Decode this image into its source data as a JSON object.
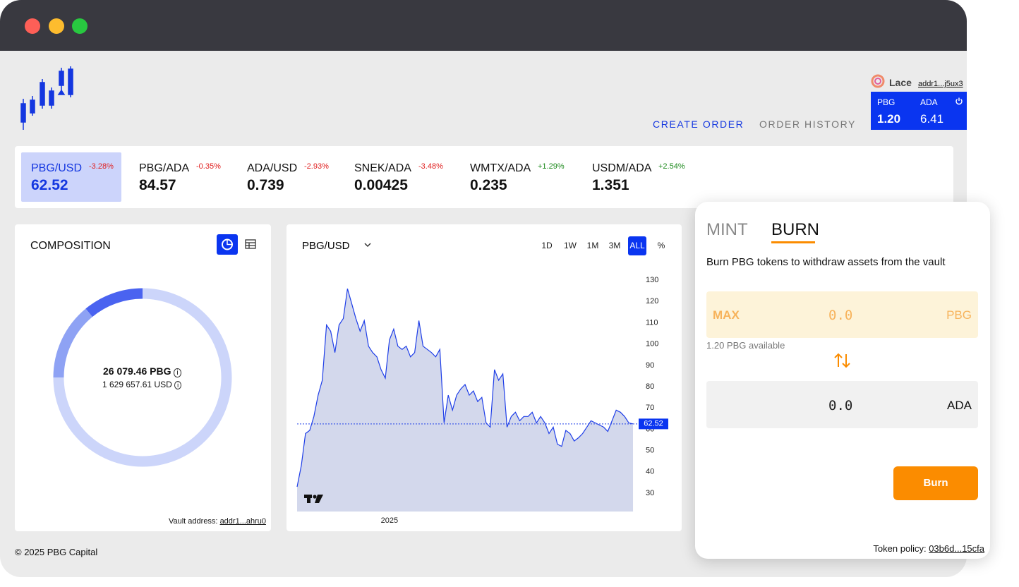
{
  "header": {
    "wallet": {
      "name": "Lace",
      "address": "addr1...j5ux3",
      "balances": [
        {
          "asset": "PBG",
          "amount": "1.20"
        },
        {
          "asset": "ADA",
          "amount": "6.41"
        }
      ]
    },
    "nav": [
      "CREATE ORDER",
      "ORDER HISTORY"
    ]
  },
  "tickers": [
    {
      "pair": "PBG/USD",
      "change": "-3.28%",
      "price": "62.52"
    },
    {
      "pair": "PBG/ADA",
      "change": "-0.35%",
      "price": "84.57"
    },
    {
      "pair": "ADA/USD",
      "change": "-2.93%",
      "price": "0.739"
    },
    {
      "pair": "SNEK/ADA",
      "change": "-3.48%",
      "price": "0.00425"
    },
    {
      "pair": "WMTX/ADA",
      "change": "+1.29%",
      "price": "0.235"
    },
    {
      "pair": "USDM/ADA",
      "change": "+2.54%",
      "price": "1.351"
    }
  ],
  "composition": {
    "title": "COMPOSITION",
    "total_pbg": "26 079.46 PBG",
    "total_usd": "1 629 657.61 USD",
    "segments": [
      {
        "color": "#4a63f0",
        "value": 11
      },
      {
        "color": "#8ea2f4",
        "value": 14
      },
      {
        "color": "#ccd5fa",
        "value": 75
      }
    ],
    "vault_label": "Vault address:",
    "vault_address": "addr1...ahru0"
  },
  "chart_data": {
    "type": "line",
    "title": "PBG/USD",
    "timeframes": [
      "1D",
      "1W",
      "1M",
      "3M",
      "ALL",
      "%"
    ],
    "active_timeframe": "ALL",
    "series": [
      {
        "name": "PBG/USD",
        "color": "#1e3ee8",
        "fill": "#d3d8ec",
        "values": [
          33,
          43,
          58,
          59.5,
          66,
          76,
          83,
          109,
          106,
          96,
          109,
          112,
          126,
          119,
          112,
          106,
          111,
          99,
          96,
          94,
          88,
          84,
          102,
          107,
          99,
          97.5,
          99,
          94,
          96,
          111,
          99,
          97.5,
          96,
          94,
          97.5,
          63,
          76,
          69,
          76,
          79,
          81,
          76,
          78,
          73,
          75,
          63,
          61,
          88,
          83,
          86,
          61,
          66,
          68,
          64,
          66,
          66,
          68,
          63,
          66,
          63,
          58,
          61,
          53,
          52,
          59.5,
          58,
          54.5,
          56,
          58,
          61,
          64,
          63,
          62,
          61,
          59,
          64,
          69,
          68,
          66,
          63,
          62.52
        ]
      }
    ],
    "xlim": [
      0,
      81
    ],
    "xticks": [
      {
        "value": 22,
        "label": "2025"
      }
    ],
    "ylim": [
      21.4,
      134
    ],
    "yticks": [
      30,
      40,
      50,
      60,
      70,
      80,
      90,
      100,
      110,
      120,
      130
    ]
  },
  "burn": {
    "tabs": [
      "MINT",
      "BURN"
    ],
    "active_tab": "BURN",
    "description": "Burn PBG tokens to withdraw assets from the vault",
    "max": "MAX",
    "input_amount": "0.0",
    "input_asset": "PBG",
    "available": "1.20 PBG available",
    "output_amount": "0.0",
    "output_asset": "ADA",
    "button": "Burn",
    "policy_label": "Token policy:",
    "policy": "03b6d...15cfa"
  },
  "footer": "© 2025 PBG Capital"
}
